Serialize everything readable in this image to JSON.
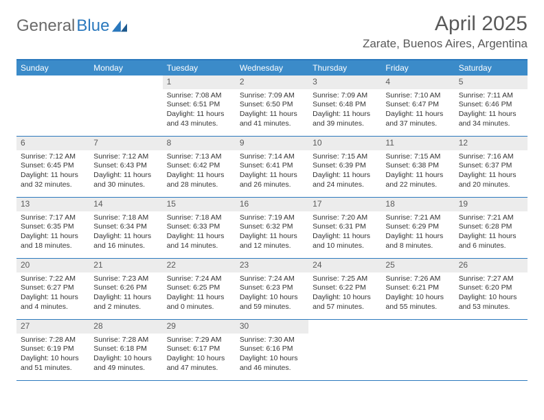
{
  "logo": {
    "part1": "General",
    "part2": "Blue"
  },
  "title": "April 2025",
  "location": "Zarate, Buenos Aires, Argentina",
  "colors": {
    "header_bar": "#3b8bc9",
    "border": "#2a78bd",
    "datebar_bg": "#ececec",
    "text": "#333333",
    "title_text": "#595959"
  },
  "daynames": [
    "Sunday",
    "Monday",
    "Tuesday",
    "Wednesday",
    "Thursday",
    "Friday",
    "Saturday"
  ],
  "weeks": [
    [
      null,
      null,
      {
        "d": "1",
        "sr": "7:08 AM",
        "ss": "6:51 PM",
        "dl": "11 hours and 43 minutes."
      },
      {
        "d": "2",
        "sr": "7:09 AM",
        "ss": "6:50 PM",
        "dl": "11 hours and 41 minutes."
      },
      {
        "d": "3",
        "sr": "7:09 AM",
        "ss": "6:48 PM",
        "dl": "11 hours and 39 minutes."
      },
      {
        "d": "4",
        "sr": "7:10 AM",
        "ss": "6:47 PM",
        "dl": "11 hours and 37 minutes."
      },
      {
        "d": "5",
        "sr": "7:11 AM",
        "ss": "6:46 PM",
        "dl": "11 hours and 34 minutes."
      }
    ],
    [
      {
        "d": "6",
        "sr": "7:12 AM",
        "ss": "6:45 PM",
        "dl": "11 hours and 32 minutes."
      },
      {
        "d": "7",
        "sr": "7:12 AM",
        "ss": "6:43 PM",
        "dl": "11 hours and 30 minutes."
      },
      {
        "d": "8",
        "sr": "7:13 AM",
        "ss": "6:42 PM",
        "dl": "11 hours and 28 minutes."
      },
      {
        "d": "9",
        "sr": "7:14 AM",
        "ss": "6:41 PM",
        "dl": "11 hours and 26 minutes."
      },
      {
        "d": "10",
        "sr": "7:15 AM",
        "ss": "6:39 PM",
        "dl": "11 hours and 24 minutes."
      },
      {
        "d": "11",
        "sr": "7:15 AM",
        "ss": "6:38 PM",
        "dl": "11 hours and 22 minutes."
      },
      {
        "d": "12",
        "sr": "7:16 AM",
        "ss": "6:37 PM",
        "dl": "11 hours and 20 minutes."
      }
    ],
    [
      {
        "d": "13",
        "sr": "7:17 AM",
        "ss": "6:35 PM",
        "dl": "11 hours and 18 minutes."
      },
      {
        "d": "14",
        "sr": "7:18 AM",
        "ss": "6:34 PM",
        "dl": "11 hours and 16 minutes."
      },
      {
        "d": "15",
        "sr": "7:18 AM",
        "ss": "6:33 PM",
        "dl": "11 hours and 14 minutes."
      },
      {
        "d": "16",
        "sr": "7:19 AM",
        "ss": "6:32 PM",
        "dl": "11 hours and 12 minutes."
      },
      {
        "d": "17",
        "sr": "7:20 AM",
        "ss": "6:31 PM",
        "dl": "11 hours and 10 minutes."
      },
      {
        "d": "18",
        "sr": "7:21 AM",
        "ss": "6:29 PM",
        "dl": "11 hours and 8 minutes."
      },
      {
        "d": "19",
        "sr": "7:21 AM",
        "ss": "6:28 PM",
        "dl": "11 hours and 6 minutes."
      }
    ],
    [
      {
        "d": "20",
        "sr": "7:22 AM",
        "ss": "6:27 PM",
        "dl": "11 hours and 4 minutes."
      },
      {
        "d": "21",
        "sr": "7:23 AM",
        "ss": "6:26 PM",
        "dl": "11 hours and 2 minutes."
      },
      {
        "d": "22",
        "sr": "7:24 AM",
        "ss": "6:25 PM",
        "dl": "11 hours and 0 minutes."
      },
      {
        "d": "23",
        "sr": "7:24 AM",
        "ss": "6:23 PM",
        "dl": "10 hours and 59 minutes."
      },
      {
        "d": "24",
        "sr": "7:25 AM",
        "ss": "6:22 PM",
        "dl": "10 hours and 57 minutes."
      },
      {
        "d": "25",
        "sr": "7:26 AM",
        "ss": "6:21 PM",
        "dl": "10 hours and 55 minutes."
      },
      {
        "d": "26",
        "sr": "7:27 AM",
        "ss": "6:20 PM",
        "dl": "10 hours and 53 minutes."
      }
    ],
    [
      {
        "d": "27",
        "sr": "7:28 AM",
        "ss": "6:19 PM",
        "dl": "10 hours and 51 minutes."
      },
      {
        "d": "28",
        "sr": "7:28 AM",
        "ss": "6:18 PM",
        "dl": "10 hours and 49 minutes."
      },
      {
        "d": "29",
        "sr": "7:29 AM",
        "ss": "6:17 PM",
        "dl": "10 hours and 47 minutes."
      },
      {
        "d": "30",
        "sr": "7:30 AM",
        "ss": "6:16 PM",
        "dl": "10 hours and 46 minutes."
      },
      null,
      null,
      null
    ]
  ],
  "labels": {
    "sunrise": "Sunrise:",
    "sunset": "Sunset:",
    "daylight": "Daylight:"
  }
}
